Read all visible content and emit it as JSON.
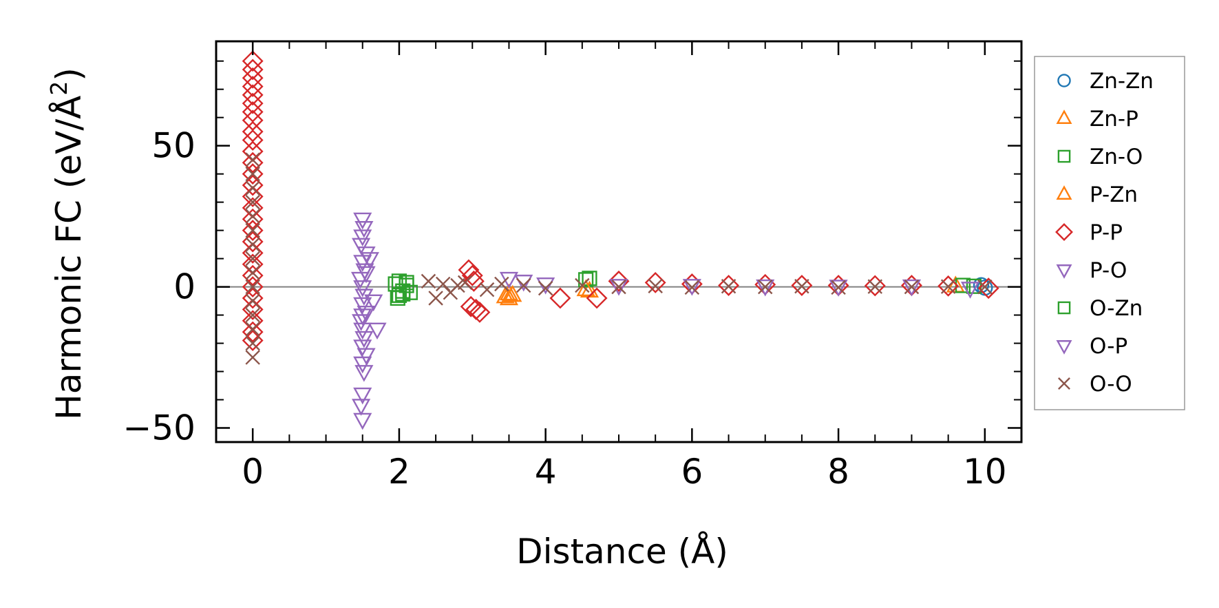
{
  "chart_data": {
    "type": "scatter",
    "xlabel": "Distance (Å)",
    "ylabel_main": "Harmonic FC (eV/Å",
    "ylabel_sup": "2",
    "ylabel_close": ")",
    "xlim": [
      -0.5,
      10.5
    ],
    "ylim": [
      -55,
      87
    ],
    "xticks": [
      0,
      2,
      4,
      6,
      8,
      10
    ],
    "xtick_labels": [
      "0",
      "2",
      "4",
      "6",
      "8",
      "10"
    ],
    "yticks": [
      -50,
      0,
      50
    ],
    "ytick_labels": [
      "−50",
      "0",
      "50"
    ],
    "zero_line": 0,
    "legend_position": "outside-right",
    "series": [
      {
        "name": "Zn-Zn",
        "marker": "circle",
        "color": "#1f77b4",
        "points": [
          [
            9.95,
            0.6
          ],
          [
            10.0,
            -0.3
          ]
        ]
      },
      {
        "name": "Zn-P",
        "marker": "triangle-up",
        "color": "#ff7f0e",
        "points": [
          [
            3.45,
            -3.5
          ],
          [
            3.5,
            -4.2
          ],
          [
            3.55,
            -3.0
          ],
          [
            4.6,
            -1.5
          ],
          [
            9.6,
            0.3
          ]
        ]
      },
      {
        "name": "Zn-O",
        "marker": "square",
        "color": "#2ca02c",
        "points": [
          [
            1.95,
            1.0
          ],
          [
            2.0,
            -3.0
          ],
          [
            2.05,
            -1.5
          ],
          [
            2.1,
            0.5
          ],
          [
            1.98,
            -4.0
          ],
          [
            2.0,
            2.0
          ],
          [
            2.15,
            -2.0
          ],
          [
            4.55,
            2.5
          ],
          [
            4.6,
            3.0
          ],
          [
            9.7,
            0.5
          ],
          [
            9.85,
            0.2
          ]
        ]
      },
      {
        "name": "P-Zn",
        "marker": "triangle-up",
        "color": "#ff7f0e",
        "points": [
          [
            3.5,
            -2.5
          ],
          [
            4.55,
            -1.0
          ]
        ]
      },
      {
        "name": "P-P",
        "marker": "diamond",
        "color": "#d62728",
        "points": [
          [
            0,
            80
          ],
          [
            0,
            77
          ],
          [
            0,
            74
          ],
          [
            0,
            71
          ],
          [
            0,
            68
          ],
          [
            0,
            65
          ],
          [
            0,
            62
          ],
          [
            0,
            59
          ],
          [
            0,
            55
          ],
          [
            0,
            52
          ],
          [
            0,
            48
          ],
          [
            0,
            44
          ],
          [
            0,
            40
          ],
          [
            0,
            36
          ],
          [
            0,
            32
          ],
          [
            0,
            28
          ],
          [
            0,
            24
          ],
          [
            0,
            20
          ],
          [
            0,
            16
          ],
          [
            0,
            12
          ],
          [
            0,
            8
          ],
          [
            0,
            4
          ],
          [
            0,
            0
          ],
          [
            0,
            -4
          ],
          [
            0,
            -8
          ],
          [
            0,
            -12
          ],
          [
            0,
            -16
          ],
          [
            0,
            -19
          ],
          [
            2.95,
            6.0
          ],
          [
            3.0,
            4.0
          ],
          [
            3.05,
            -8.0
          ],
          [
            3.1,
            -9.0
          ],
          [
            2.98,
            -7.0
          ],
          [
            3.02,
            2.0
          ],
          [
            4.2,
            -4.0
          ],
          [
            4.7,
            -4.0
          ],
          [
            5.0,
            2.0
          ],
          [
            5.5,
            1.5
          ],
          [
            6.0,
            1.0
          ],
          [
            6.5,
            0.5
          ],
          [
            7.0,
            0.8
          ],
          [
            7.5,
            0.5
          ],
          [
            8.0,
            0.5
          ],
          [
            8.5,
            0.4
          ],
          [
            9.0,
            0.5
          ],
          [
            9.5,
            0.3
          ],
          [
            10.05,
            -0.5
          ]
        ]
      },
      {
        "name": "P-O",
        "marker": "triangle-down",
        "color": "#9467bd",
        "points": [
          [
            1.5,
            24
          ],
          [
            1.52,
            21
          ],
          [
            1.5,
            18
          ],
          [
            1.48,
            15
          ],
          [
            1.55,
            12
          ],
          [
            1.5,
            9
          ],
          [
            1.53,
            6
          ],
          [
            1.47,
            3
          ],
          [
            1.5,
            0
          ],
          [
            1.52,
            -3
          ],
          [
            1.5,
            -6
          ],
          [
            1.55,
            -9
          ],
          [
            1.48,
            -12
          ],
          [
            1.5,
            -15
          ],
          [
            1.52,
            -18
          ],
          [
            1.5,
            -21
          ],
          [
            1.55,
            -24
          ],
          [
            1.5,
            -27
          ],
          [
            1.52,
            -30
          ],
          [
            1.5,
            -38
          ],
          [
            1.48,
            -42
          ],
          [
            1.5,
            -47
          ],
          [
            1.6,
            10
          ],
          [
            1.65,
            -5
          ],
          [
            1.7,
            -15
          ],
          [
            3.5,
            3.0
          ],
          [
            3.7,
            2.0
          ],
          [
            4.0,
            1.0
          ],
          [
            5.0,
            0.5
          ],
          [
            6.0,
            0.5
          ],
          [
            7.0,
            0.3
          ],
          [
            8.0,
            0.2
          ],
          [
            9.0,
            0.3
          ],
          [
            9.8,
            -0.5
          ]
        ]
      },
      {
        "name": "O-Zn",
        "marker": "square",
        "color": "#2ca02c",
        "points": [
          [
            2.05,
            -2.5
          ],
          [
            2.1,
            1.5
          ]
        ]
      },
      {
        "name": "O-P",
        "marker": "triangle-down",
        "color": "#9467bd",
        "points": [
          [
            1.55,
            5
          ],
          [
            1.5,
            -10
          ]
        ]
      },
      {
        "name": "O-O",
        "marker": "x",
        "color": "#8c564b",
        "points": [
          [
            0,
            45
          ],
          [
            0,
            40
          ],
          [
            0,
            35
          ],
          [
            0,
            30
          ],
          [
            0,
            25
          ],
          [
            0,
            20
          ],
          [
            0,
            15
          ],
          [
            0,
            10
          ],
          [
            0,
            5
          ],
          [
            0,
            0
          ],
          [
            0,
            -5
          ],
          [
            0,
            -10
          ],
          [
            0,
            -15
          ],
          [
            0,
            -20
          ],
          [
            0,
            -25
          ],
          [
            2.4,
            2.0
          ],
          [
            2.5,
            -4.0
          ],
          [
            2.6,
            1.0
          ],
          [
            2.7,
            -2.0
          ],
          [
            2.8,
            0.5
          ],
          [
            2.9,
            1.5
          ],
          [
            3.2,
            -1.0
          ],
          [
            3.4,
            1.0
          ],
          [
            3.7,
            0.5
          ],
          [
            4.0,
            -0.5
          ],
          [
            4.5,
            0.5
          ],
          [
            5.0,
            0.0
          ],
          [
            5.5,
            0.3
          ],
          [
            6.0,
            -0.2
          ],
          [
            6.5,
            0.2
          ],
          [
            7.0,
            0.0
          ],
          [
            7.5,
            0.2
          ],
          [
            8.0,
            -0.2
          ],
          [
            8.5,
            0.1
          ],
          [
            9.0,
            0.0
          ],
          [
            9.5,
            0.1
          ],
          [
            10.0,
            0.0
          ]
        ]
      }
    ]
  }
}
